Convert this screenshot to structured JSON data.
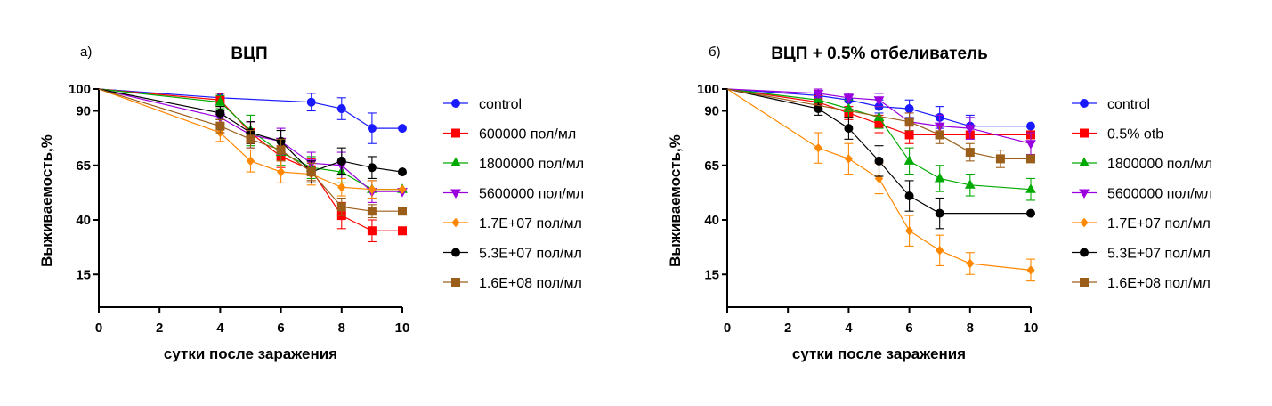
{
  "chart_data": [
    {
      "type": "line",
      "panel_label": "а)",
      "title": "ВЦП",
      "xlabel": "сутки после заражения",
      "ylabel": "Выживаемость,%",
      "xlim": [
        0,
        10
      ],
      "ylim": [
        0,
        100
      ],
      "xticks": [
        0,
        2,
        4,
        6,
        8,
        10
      ],
      "yticks": [
        15,
        40,
        65,
        90,
        100
      ],
      "legend": "right",
      "series": [
        {
          "name": "control",
          "color": "#1a1aff",
          "marker": "circle",
          "x": [
            0,
            4,
            7,
            8,
            9,
            10
          ],
          "y": [
            100,
            96,
            94,
            91,
            82,
            82
          ],
          "err": [
            0,
            2,
            4,
            5,
            7,
            0
          ]
        },
        {
          "name": "600000 пол/мл",
          "color": "#ff0000",
          "marker": "square",
          "x": [
            0,
            4,
            5,
            6,
            7,
            8,
            9,
            10
          ],
          "y": [
            100,
            95,
            80,
            69,
            63,
            42,
            35,
            35
          ],
          "err": [
            0,
            3,
            5,
            5,
            5,
            6,
            5,
            0
          ]
        },
        {
          "name": "1800000 пол/мл",
          "color": "#00aa00",
          "marker": "triangle-up",
          "x": [
            0,
            4,
            5,
            6,
            7,
            8,
            9,
            10
          ],
          "y": [
            100,
            94,
            81,
            71,
            64,
            62,
            54,
            54
          ],
          "err": [
            0,
            3,
            7,
            6,
            5,
            5,
            4,
            0
          ]
        },
        {
          "name": "5600000 пол/мл",
          "color": "#9900dd",
          "marker": "triangle-down",
          "x": [
            0,
            4,
            5,
            6,
            7,
            8,
            9,
            10
          ],
          "y": [
            100,
            87,
            79,
            76,
            66,
            65,
            53,
            53
          ],
          "err": [
            0,
            3,
            6,
            6,
            5,
            6,
            5,
            0
          ]
        },
        {
          "name": "1.7E+07 пол/мл",
          "color": "#ff8800",
          "marker": "diamond",
          "x": [
            0,
            4,
            5,
            6,
            7,
            8,
            9,
            10
          ],
          "y": [
            100,
            80,
            67,
            62,
            61,
            55,
            54,
            54
          ],
          "err": [
            0,
            4,
            5,
            5,
            5,
            4,
            4,
            0
          ]
        },
        {
          "name": "5.3E+07 пол/мл",
          "color": "#000000",
          "marker": "circle",
          "x": [
            0,
            4,
            5,
            6,
            7,
            8,
            9,
            10
          ],
          "y": [
            100,
            89,
            80,
            76,
            62,
            67,
            64,
            62
          ],
          "err": [
            0,
            3,
            5,
            5,
            5,
            6,
            5,
            0
          ]
        },
        {
          "name": "1.6E+08 пол/мл",
          "color": "#9b5e1a",
          "marker": "square",
          "x": [
            0,
            4,
            5,
            6,
            7,
            8,
            9,
            10
          ],
          "y": [
            100,
            83,
            77,
            72,
            62,
            46,
            44,
            44
          ],
          "err": [
            0,
            3,
            4,
            5,
            4,
            4,
            3,
            0
          ]
        }
      ]
    },
    {
      "type": "line",
      "panel_label": "б)",
      "title": "ВЦП + 0.5% отбеливатель",
      "xlabel": "сутки после заражения",
      "ylabel": "Выживаемость,%",
      "xlim": [
        0,
        10
      ],
      "ylim": [
        0,
        100
      ],
      "xticks": [
        0,
        2,
        4,
        6,
        8,
        10
      ],
      "yticks": [
        15,
        40,
        65,
        90,
        100
      ],
      "legend": "right",
      "series": [
        {
          "name": "control",
          "color": "#1a1aff",
          "marker": "circle",
          "x": [
            0,
            3,
            4,
            5,
            6,
            7,
            8,
            10
          ],
          "y": [
            100,
            97,
            95,
            92,
            91,
            87,
            83,
            83
          ],
          "err": [
            0,
            2,
            3,
            3,
            4,
            5,
            5,
            0
          ]
        },
        {
          "name": "0.5% otb",
          "color": "#ff0000",
          "marker": "square",
          "x": [
            0,
            3,
            4,
            5,
            6,
            7,
            8,
            10
          ],
          "y": [
            100,
            94,
            89,
            84,
            79,
            79,
            79,
            79
          ],
          "err": [
            0,
            3,
            3,
            4,
            4,
            0,
            0,
            0
          ]
        },
        {
          "name": "1800000 пол/мл",
          "color": "#00aa00",
          "marker": "triangle-up",
          "x": [
            0,
            3,
            4,
            5,
            6,
            7,
            8,
            10
          ],
          "y": [
            100,
            95,
            91,
            87,
            67,
            59,
            56,
            54
          ],
          "err": [
            0,
            3,
            4,
            5,
            6,
            6,
            5,
            5
          ]
        },
        {
          "name": "5600000 пол/мл",
          "color": "#9900dd",
          "marker": "triangle-down",
          "x": [
            0,
            3,
            4,
            5,
            6,
            7,
            8,
            10
          ],
          "y": [
            100,
            98,
            96,
            95,
            85,
            83,
            82,
            75
          ],
          "err": [
            0,
            2,
            2,
            3,
            4,
            5,
            5,
            5
          ]
        },
        {
          "name": "1.7E+07 пол/мл",
          "color": "#ff8800",
          "marker": "diamond",
          "x": [
            0,
            3,
            4,
            5,
            6,
            7,
            8,
            10
          ],
          "y": [
            100,
            73,
            68,
            59,
            35,
            26,
            20,
            17
          ],
          "err": [
            0,
            7,
            7,
            7,
            7,
            7,
            5,
            5
          ]
        },
        {
          "name": "5.3E+07 пол/мл",
          "color": "#000000",
          "marker": "circle",
          "x": [
            0,
            3,
            4,
            5,
            6,
            7,
            10
          ],
          "y": [
            100,
            91,
            82,
            67,
            51,
            43,
            43
          ],
          "err": [
            0,
            3,
            5,
            7,
            7,
            7,
            0
          ]
        },
        {
          "name": "1.6E+08 пол/мл",
          "color": "#9b5e1a",
          "marker": "square",
          "x": [
            0,
            6,
            7,
            8,
            9,
            10
          ],
          "y": [
            100,
            85,
            79,
            71,
            68,
            68
          ],
          "err": [
            0,
            4,
            4,
            4,
            4,
            0
          ]
        }
      ]
    }
  ]
}
